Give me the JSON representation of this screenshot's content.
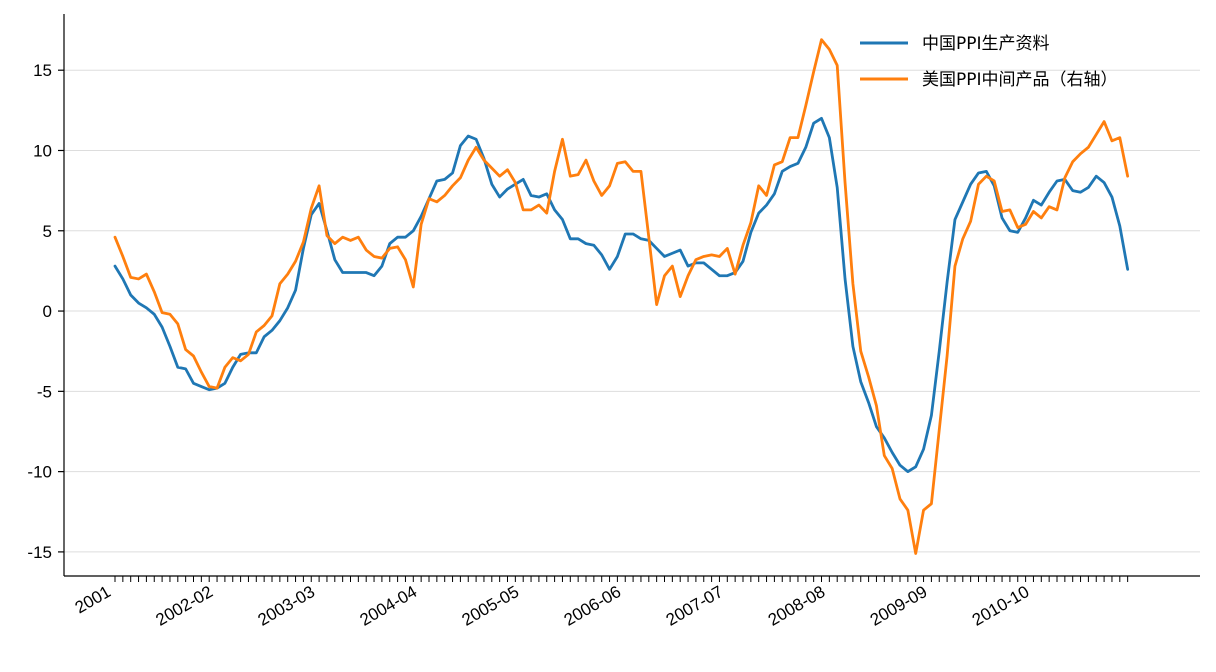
{
  "chart_data": {
    "type": "line",
    "title": "",
    "xlabel": "",
    "ylabel": "",
    "ylim": [
      -16.5,
      18.5
    ],
    "yticks": [
      15,
      10,
      5,
      0,
      -5,
      -10,
      -15
    ],
    "ytick_labels": [
      "15",
      "10",
      "5",
      "0",
      "-5",
      "-10",
      "-15"
    ],
    "grid": "horizontal",
    "legend_position": "top-right",
    "x_labels": [
      "2001",
      "2002-02",
      "2003-03",
      "2004-04",
      "2005-05",
      "2006-06",
      "2007-07",
      "2008-08",
      "2009-09",
      "2010-10"
    ],
    "x_label_month_index": [
      0,
      13,
      26,
      39,
      52,
      65,
      78,
      91,
      104,
      117
    ],
    "colors": {
      "series1": "#1f77b4",
      "series2": "#ff7f0e",
      "grid": "#dddddd",
      "axis": "#000000"
    },
    "series": [
      {
        "name": "中国PPI生产资料",
        "values": [
          2.8,
          2.0,
          1.0,
          0.5,
          0.2,
          -0.2,
          -1.0,
          -2.2,
          -3.5,
          -3.6,
          -4.5,
          -4.7,
          -4.9,
          -4.8,
          -4.5,
          -3.5,
          -2.7,
          -2.6,
          -2.6,
          -1.6,
          -1.2,
          -0.6,
          0.2,
          1.3,
          3.9,
          6.0,
          6.7,
          5.0,
          3.2,
          2.4,
          2.4,
          2.4,
          2.4,
          2.2,
          2.8,
          4.2,
          4.6,
          4.6,
          5.0,
          5.9,
          7.0,
          8.1,
          8.2,
          8.6,
          10.3,
          10.9,
          10.7,
          9.5,
          7.9,
          7.1,
          7.6,
          7.9,
          8.2,
          7.2,
          7.1,
          7.3,
          6.3,
          5.7,
          4.5,
          4.5,
          4.2,
          4.1,
          3.5,
          2.6,
          3.4,
          4.8,
          4.8,
          4.5,
          4.4,
          3.9,
          3.4,
          3.6,
          3.8,
          2.8,
          3.0,
          3.0,
          2.6,
          2.2,
          2.2,
          2.4,
          3.1,
          4.9,
          6.1,
          6.6,
          7.3,
          8.7,
          9.0,
          9.2,
          10.2,
          11.7,
          12.0,
          10.8,
          7.7,
          2.0,
          -2.2,
          -4.4,
          -5.7,
          -7.2,
          -7.9,
          -8.8,
          -9.6,
          -10.0,
          -9.7,
          -8.6,
          -6.5,
          -2.5,
          1.8,
          5.7,
          6.8,
          7.9,
          8.6,
          8.7,
          7.8,
          5.8,
          5.0,
          4.9,
          5.8,
          6.9,
          6.6,
          7.4,
          8.1,
          8.2,
          7.5,
          7.4,
          7.7,
          8.4,
          8.0,
          7.1,
          5.3,
          2.6
        ],
        "y_axis": "left"
      },
      {
        "name": "美国PPI中间产品（右轴）",
        "values": [
          4.6,
          3.4,
          2.1,
          2.0,
          2.3,
          1.2,
          -0.1,
          -0.2,
          -0.8,
          -2.4,
          -2.8,
          -3.8,
          -4.7,
          -4.8,
          -3.5,
          -2.9,
          -3.1,
          -2.7,
          -1.3,
          -0.9,
          -0.3,
          1.7,
          2.3,
          3.1,
          4.3,
          6.4,
          7.8,
          4.7,
          4.2,
          4.6,
          4.4,
          4.6,
          3.8,
          3.4,
          3.3,
          3.9,
          4.0,
          3.2,
          1.5,
          5.4,
          7.0,
          6.8,
          7.2,
          7.8,
          8.3,
          9.4,
          10.2,
          9.4,
          8.9,
          8.4,
          8.8,
          8.0,
          6.3,
          6.3,
          6.6,
          6.1,
          8.7,
          10.7,
          8.4,
          8.5,
          9.4,
          8.1,
          7.2,
          7.8,
          9.2,
          9.3,
          8.7,
          8.7,
          4.6,
          0.4,
          2.2,
          2.8,
          0.9,
          2.2,
          3.2,
          3.4,
          3.5,
          3.4,
          3.9,
          2.3,
          4.1,
          5.5,
          7.8,
          7.2,
          9.1,
          9.3,
          10.8,
          10.8,
          12.8,
          14.9,
          16.9,
          16.3,
          15.3,
          8.0,
          1.7,
          -2.5,
          -4.1,
          -5.9,
          -9.0,
          -9.8,
          -11.7,
          -12.4,
          -15.1,
          -12.4,
          -12.0,
          -7.4,
          -2.8,
          2.8,
          4.5,
          5.6,
          7.9,
          8.4,
          8.1,
          6.2,
          6.3,
          5.2,
          5.4,
          6.2,
          5.8,
          6.5,
          6.3,
          8.3,
          9.3,
          9.8,
          10.2,
          11.0,
          11.8,
          10.6,
          10.8,
          8.4
        ],
        "y_axis": "right"
      }
    ]
  }
}
